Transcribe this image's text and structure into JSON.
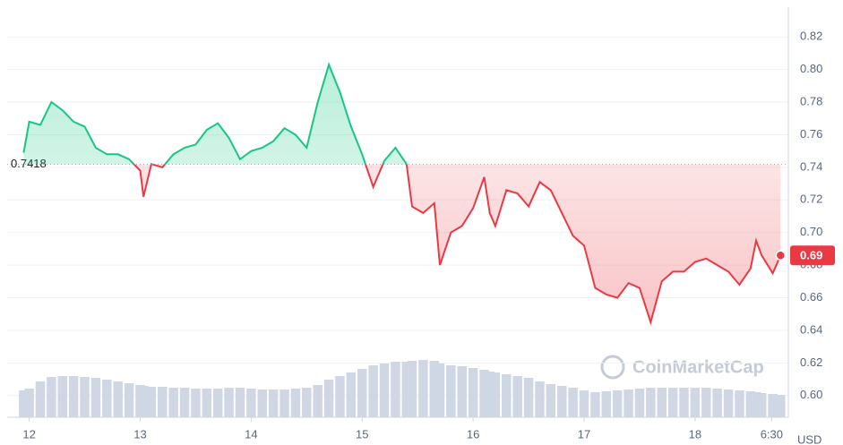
{
  "chart_data": {
    "type": "line",
    "currency": "USD",
    "watermark": "CoinMarketCap",
    "baseline": 0.7418,
    "last_label": "0.69",
    "x": [
      11.95,
      12.0,
      12.1,
      12.2,
      12.3,
      12.4,
      12.5,
      12.6,
      12.7,
      12.8,
      12.9,
      13.0,
      13.03,
      13.1,
      13.2,
      13.3,
      13.4,
      13.5,
      13.6,
      13.7,
      13.8,
      13.9,
      14.0,
      14.1,
      14.2,
      14.3,
      14.4,
      14.5,
      14.6,
      14.7,
      14.8,
      14.9,
      15.0,
      15.1,
      15.2,
      15.3,
      15.4,
      15.45,
      15.55,
      15.65,
      15.7,
      15.8,
      15.9,
      16.0,
      16.1,
      16.15,
      16.2,
      16.3,
      16.4,
      16.5,
      16.6,
      16.7,
      16.8,
      16.9,
      17.0,
      17.1,
      17.2,
      17.3,
      17.4,
      17.5,
      17.6,
      17.7,
      17.8,
      17.9,
      18.0,
      18.1,
      18.2,
      18.3,
      18.4,
      18.5,
      18.55,
      18.6,
      18.7,
      18.77
    ],
    "series": [
      {
        "name": "Price",
        "color_up": "#16c784",
        "color_down": "#ea3943",
        "values": [
          0.749,
          0.768,
          0.766,
          0.78,
          0.775,
          0.768,
          0.765,
          0.752,
          0.748,
          0.748,
          0.745,
          0.738,
          0.722,
          0.742,
          0.74,
          0.748,
          0.752,
          0.754,
          0.763,
          0.767,
          0.758,
          0.745,
          0.75,
          0.752,
          0.756,
          0.764,
          0.76,
          0.752,
          0.78,
          0.803,
          0.786,
          0.765,
          0.748,
          0.728,
          0.744,
          0.752,
          0.742,
          0.716,
          0.712,
          0.718,
          0.68,
          0.7,
          0.704,
          0.715,
          0.734,
          0.712,
          0.704,
          0.726,
          0.724,
          0.716,
          0.731,
          0.726,
          0.712,
          0.698,
          0.692,
          0.666,
          0.662,
          0.66,
          0.669,
          0.666,
          0.645,
          0.67,
          0.676,
          0.676,
          0.682,
          0.684,
          0.68,
          0.676,
          0.668,
          0.678,
          0.695,
          0.686,
          0.675,
          0.686
        ]
      }
    ],
    "volume": [
      30,
      32,
      40,
      45,
      46,
      46,
      45,
      44,
      42,
      40,
      38,
      36,
      35,
      34,
      34,
      33,
      33,
      32,
      32,
      32,
      33,
      33,
      32,
      31,
      31,
      31,
      32,
      33,
      36,
      42,
      46,
      50,
      54,
      58,
      60,
      62,
      62,
      63,
      64,
      63,
      60,
      58,
      57,
      55,
      53,
      51,
      50,
      48,
      46,
      44,
      40,
      37,
      35,
      33,
      30,
      28,
      29,
      30,
      31,
      32,
      33,
      33,
      33,
      33,
      33,
      33,
      32,
      31,
      30,
      29,
      28,
      27,
      26,
      25
    ],
    "xticks": [
      {
        "value": 12,
        "label": "12"
      },
      {
        "value": 13,
        "label": "13"
      },
      {
        "value": 14,
        "label": "14"
      },
      {
        "value": 15,
        "label": "15"
      },
      {
        "value": 16,
        "label": "16"
      },
      {
        "value": 17,
        "label": "17"
      },
      {
        "value": 18,
        "label": "18"
      },
      {
        "value": 18.69,
        "label": "6:30"
      }
    ],
    "xlim": [
      11.85,
      18.8
    ],
    "ylim": [
      0.5966,
      0.8267
    ],
    "yticks": [
      {
        "value": 0.6,
        "label": "0.60"
      },
      0.62,
      0.64,
      0.66,
      0.68,
      {
        "value": 0.7,
        "label": "0.70"
      },
      0.72,
      0.74,
      0.76,
      0.78,
      {
        "value": 0.8,
        "label": "0.80"
      },
      0.82
    ],
    "grid": true
  }
}
